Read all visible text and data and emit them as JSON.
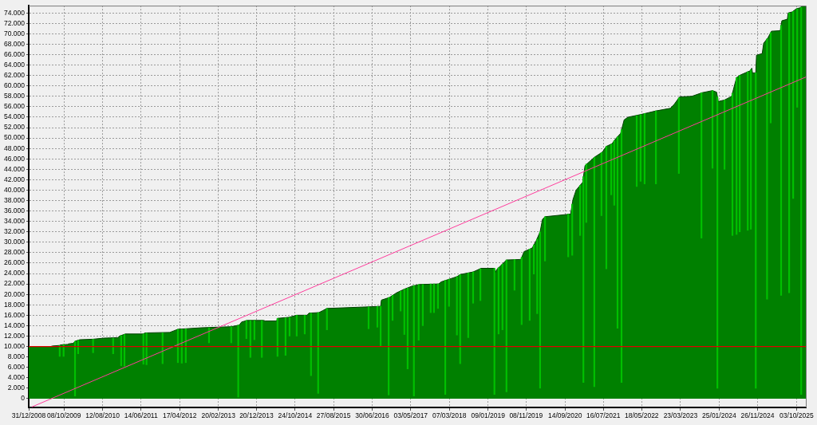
{
  "chart_data": {
    "type": "area",
    "series": [
      {
        "color": "#008000",
        "x": [
          "2008-12-31",
          "2009-06-25",
          "2009-07-08",
          "2009-09-04",
          "2009-09-10",
          "2009-11-06",
          "2009-11-13",
          "2009-12-20",
          "2010-01-04",
          "2010-02-11",
          "2010-05-28",
          "2010-08-19",
          "2010-12-12",
          "2010-12-25",
          "2011-02-09",
          "2011-07-03",
          "2011-07-15",
          "2012-01-30",
          "2012-03-01",
          "2012-04-03",
          "2012-10-11",
          "2013-06-02",
          "2013-08-05",
          "2013-08-24",
          "2013-10-08",
          "2014-02-13",
          "2014-03-02",
          "2014-05-30",
          "2014-06-06",
          "2014-09-04",
          "2014-11-06",
          "2015-01-28",
          "2015-02-11",
          "2015-05-02",
          "2015-06-03",
          "2015-07-05",
          "2016-09-05",
          "2016-09-11",
          "2016-11-14",
          "2017-01-10",
          "2017-03-13",
          "2017-05-15",
          "2017-07-18",
          "2017-12-12",
          "2018-01-01",
          "2018-03-04",
          "2018-05-06",
          "2018-06-01",
          "2018-09-12",
          "2018-11-15",
          "2019-03-01",
          "2019-03-08",
          "2019-03-20",
          "2019-04-15",
          "2019-06-05",
          "2019-09-28",
          "2019-10-23",
          "2019-12-27",
          "2020-01-28",
          "2020-02-28",
          "2020-03-18",
          "2020-04-07",
          "2020-10-28",
          "2020-11-16",
          "2020-12-11",
          "2021-02-01",
          "2021-02-20",
          "2021-05-05",
          "2021-07-08",
          "2021-08-09",
          "2021-09-23",
          "2021-10-24",
          "2021-12-01",
          "2021-12-29",
          "2022-01-29",
          "2022-05-09",
          "2022-09-08",
          "2023-01-01",
          "2023-02-02",
          "2023-03-16",
          "2023-06-21",
          "2023-09-12",
          "2023-12-03",
          "2024-01-05",
          "2024-01-18",
          "2024-03-08",
          "2024-05-04",
          "2024-05-23",
          "2024-06-12",
          "2024-07-13",
          "2024-09-28",
          "2024-10-11",
          "2024-10-17",
          "2024-11-12",
          "2024-11-18",
          "2025-01-02",
          "2025-01-14",
          "2025-02-16",
          "2025-03-17",
          "2025-05-26",
          "2025-06-08",
          "2025-07-22",
          "2025-07-28",
          "2025-08-30",
          "2025-10-01",
          "2025-11-02",
          "2025-11-14",
          "2025-12-16"
        ],
        "values": [
          10000,
          10000,
          10100,
          10200,
          10300,
          10400,
          10500,
          10600,
          11000,
          11300,
          11400,
          11600,
          11700,
          12000,
          12400,
          12400,
          12600,
          12700,
          13000,
          13300,
          13600,
          13800,
          14100,
          14700,
          15000,
          15000,
          14900,
          14900,
          15400,
          15600,
          16000,
          16000,
          16400,
          16500,
          16900,
          17300,
          17700,
          18900,
          19400,
          20300,
          21000,
          21600,
          21900,
          22000,
          22400,
          22900,
          23400,
          23800,
          24300,
          25000,
          25000,
          24200,
          24800,
          25400,
          26600,
          26700,
          28200,
          28900,
          30300,
          32000,
          34400,
          34900,
          35400,
          38200,
          40000,
          41500,
          44700,
          46300,
          47300,
          48400,
          48900,
          49900,
          50900,
          53500,
          54000,
          54500,
          55200,
          55700,
          56500,
          57900,
          58000,
          58700,
          59100,
          58800,
          57000,
          57300,
          58000,
          59800,
          61600,
          62100,
          62900,
          63400,
          62500,
          62500,
          65900,
          66200,
          68200,
          69200,
          70500,
          70600,
          72500,
          72800,
          74000,
          74200,
          74800,
          75000,
          75300,
          75300
        ]
      },
      {
        "type": "bar",
        "color": "#00c000",
        "x": [
          "2009-09-04",
          "2009-10-05",
          "2010-01-04",
          "2010-01-29",
          "2010-05-28",
          "2010-11-04",
          "2011-01-07",
          "2011-02-02",
          "2011-07-03",
          "2011-07-28",
          "2011-12-03",
          "2012-04-03",
          "2012-05-04",
          "2012-06-05",
          "2012-12-07",
          "2013-06-02",
          "2013-07-28",
          "2013-10-01",
          "2013-11-02",
          "2013-12-04",
          "2014-02-01",
          "2014-06-06",
          "2014-08-09",
          "2014-09-10",
          "2014-11-06",
          "2015-01-09",
          "2015-02-28",
          "2015-04-26",
          "2015-07-05",
          "2016-06-01",
          "2016-08-10",
          "2016-09-05",
          "2016-11-08",
          "2016-12-09",
          "2017-02-11",
          "2017-03-13",
          "2017-04-08",
          "2017-05-28",
          "2017-07-05",
          "2017-08-07",
          "2017-10-09",
          "2017-11-04",
          "2017-12-06",
          "2018-02-02",
          "2018-03-04",
          "2018-05-06",
          "2018-06-01",
          "2018-08-04",
          "2018-09-12",
          "2018-11-09",
          "2019-03-01",
          "2019-04-03",
          "2019-05-04",
          "2019-06-05",
          "2019-08-08",
          "2019-10-04",
          "2019-12-07",
          "2020-01-09",
          "2020-02-05",
          "2020-02-28",
          "2020-04-07",
          "2020-10-09",
          "2020-11-10",
          "2021-01-12",
          "2021-02-07",
          "2021-03-02",
          "2021-05-05",
          "2021-07-01",
          "2021-08-09",
          "2021-09-17",
          "2021-10-11",
          "2021-11-06",
          "2021-12-08",
          "2022-04-08",
          "2022-05-09",
          "2022-06-10",
          "2022-09-08",
          "2023-03-10",
          "2023-09-06",
          "2023-12-03",
          "2024-01-11",
          "2024-03-08",
          "2024-05-10",
          "2024-06-12",
          "2024-07-07",
          "2024-09-09",
          "2024-10-04",
          "2024-11-12",
          "2025-02-10",
          "2025-03-11",
          "2025-06-02",
          "2025-08-05",
          "2025-09-06",
          "2025-10-08",
          "2025-11-09"
        ],
        "base": [
          8100,
          8100,
          500,
          8600,
          8800,
          8600,
          6300,
          6200,
          6600,
          6500,
          6700,
          6900,
          6800,
          6900,
          10700,
          10700,
          300,
          11500,
          7900,
          11300,
          7900,
          8100,
          8300,
          12000,
          12000,
          12400,
          4400,
          1000,
          13200,
          13400,
          13700,
          10000,
          700,
          15000,
          16800,
          12300,
          5700,
          500,
          11200,
          14000,
          16500,
          16500,
          17300,
          800,
          17700,
          12200,
          6700,
          11700,
          18300,
          18800,
          800,
          12400,
          13200,
          1300,
          20800,
          14200,
          15000,
          23900,
          16300,
          2000,
          26400,
          27200,
          27500,
          31300,
          3100,
          33800,
          2300,
          35100,
          24900,
          39100,
          37100,
          13500,
          3100,
          40700,
          41700,
          41200,
          41200,
          43200,
          30800,
          44200,
          2000,
          44000,
          31300,
          31500,
          32000,
          32300,
          32500,
          2000,
          19100,
          52900,
          19800,
          20300,
          38400,
          55900,
          800
        ],
        "values": [
          2100,
          2300,
          10500,
          2600,
          2600,
          3000,
          5800,
          6100,
          5800,
          6100,
          5900,
          6400,
          6500,
          6500,
          2900,
          3100,
          13800,
          3500,
          7100,
          3700,
          7100,
          7300,
          7200,
          3600,
          4000,
          3600,
          12000,
          15500,
          4100,
          4200,
          4000,
          7700,
          18700,
          4800,
          3800,
          8700,
          15500,
          21200,
          10700,
          7900,
          5500,
          5500,
          4700,
          21900,
          5200,
          11200,
          17100,
          12400,
          6000,
          6100,
          24200,
          12700,
          12600,
          25300,
          5900,
          12900,
          13700,
          5600,
          14300,
          30000,
          8500,
          8200,
          9800,
          9600,
          39500,
          11200,
          44000,
          12100,
          23500,
          9700,
          12400,
          36700,
          48500,
          13600,
          12800,
          13500,
          14000,
          14500,
          27900,
          14900,
          55900,
          13300,
          27300,
          30100,
          30000,
          30400,
          30600,
          60500,
          49900,
          17300,
          51800,
          53700,
          35900,
          18900,
          74300
        ]
      },
      {
        "type": "line",
        "color": "#ff3c9c",
        "x": [
          "2009-01-25",
          "2025-12-16"
        ],
        "values": [
          -1600,
          61700
        ]
      }
    ],
    "ref_lines": [
      {
        "axis": "y",
        "value": 10000,
        "color": "#e00000"
      }
    ],
    "xlim": [
      "2008-12-31",
      "2025-12-16"
    ],
    "xticks": [
      {
        "value": "2008-12-31",
        "label": "31/12/2008"
      },
      {
        "value": "2009-10-08",
        "label": "08/10/2009"
      },
      {
        "value": "2010-08-12",
        "label": "12/08/2010"
      },
      {
        "value": "2011-06-14",
        "label": "14/06/2011"
      },
      {
        "value": "2012-04-17",
        "label": "17/04/2012"
      },
      {
        "value": "2013-02-20",
        "label": "20/02/2013"
      },
      {
        "value": "2013-12-20",
        "label": "20/12/2013"
      },
      {
        "value": "2014-10-24",
        "label": "24/10/2014"
      },
      {
        "value": "2015-08-27",
        "label": "27/08/2015"
      },
      {
        "value": "2016-06-30",
        "label": "30/06/2016"
      },
      {
        "value": "2017-05-03",
        "label": "03/05/2017"
      },
      {
        "value": "2018-03-07",
        "label": "07/03/2018"
      },
      {
        "value": "2019-01-09",
        "label": "09/01/2019"
      },
      {
        "value": "2019-11-08",
        "label": "08/11/2019"
      },
      {
        "value": "2020-09-14",
        "label": "14/09/2020"
      },
      {
        "value": "2021-07-16",
        "label": "16/07/2021"
      },
      {
        "value": "2022-05-18",
        "label": "18/05/2022"
      },
      {
        "value": "2023-03-23",
        "label": "23/03/2023"
      },
      {
        "value": "2024-01-25",
        "label": "25/01/2024"
      },
      {
        "value": "2024-11-26",
        "label": "26/11/2024"
      },
      {
        "value": "2025-10-03",
        "label": "03/10/2025"
      }
    ],
    "ylim": [
      -1700,
      75400
    ],
    "yticks": [
      0,
      {
        "value": 2000,
        "label": "2.000"
      },
      {
        "value": 4000,
        "label": "4.000"
      },
      {
        "value": 6000,
        "label": "6.000"
      },
      {
        "value": 8000,
        "label": "8.000"
      },
      {
        "value": 10000,
        "label": "10.000"
      },
      {
        "value": 12000,
        "label": "12.000"
      },
      {
        "value": 14000,
        "label": "14.000"
      },
      {
        "value": 16000,
        "label": "16.000"
      },
      {
        "value": 18000,
        "label": "18.000"
      },
      {
        "value": 20000,
        "label": "20.000"
      },
      {
        "value": 22000,
        "label": "22.000"
      },
      {
        "value": 24000,
        "label": "24.000"
      },
      {
        "value": 26000,
        "label": "26.000"
      },
      {
        "value": 28000,
        "label": "28.000"
      },
      {
        "value": 30000,
        "label": "30.000"
      },
      {
        "value": 32000,
        "label": "32.000"
      },
      {
        "value": 34000,
        "label": "34.000"
      },
      {
        "value": 36000,
        "label": "36.000"
      },
      {
        "value": 38000,
        "label": "38.000"
      },
      {
        "value": 40000,
        "label": "40.000"
      },
      {
        "value": 42000,
        "label": "42.000"
      },
      {
        "value": 44000,
        "label": "44.000"
      },
      {
        "value": 46000,
        "label": "46.000"
      },
      {
        "value": 48000,
        "label": "48.000"
      },
      {
        "value": 50000,
        "label": "50.000"
      },
      {
        "value": 52000,
        "label": "52.000"
      },
      {
        "value": 54000,
        "label": "54.000"
      },
      {
        "value": 56000,
        "label": "56.000"
      },
      {
        "value": 58000,
        "label": "58.000"
      },
      {
        "value": 60000,
        "label": "60.000"
      },
      {
        "value": 62000,
        "label": "62.000"
      },
      {
        "value": 64000,
        "label": "64.000"
      },
      {
        "value": 66000,
        "label": "66.000"
      },
      {
        "value": 68000,
        "label": "68.000"
      },
      {
        "value": 70000,
        "label": "70.000"
      },
      {
        "value": 72000,
        "label": "72.000"
      },
      {
        "value": 74000,
        "label": "74.000"
      }
    ],
    "grid": true
  }
}
